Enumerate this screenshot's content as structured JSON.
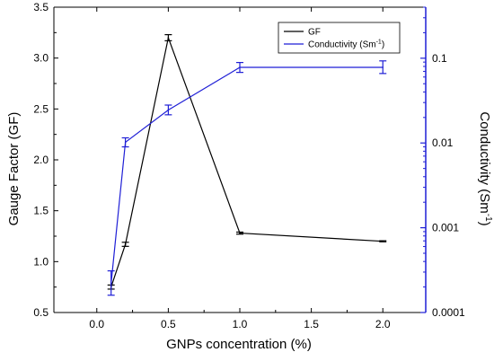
{
  "chart_data": {
    "type": "line",
    "title": "",
    "xlabel": "GNPs concentration (%)",
    "ylabel_left": "Gauge Factor (GF)",
    "ylabel_right_main": "Conductivity (Sm",
    "ylabel_right_sup": "-1",
    "ylabel_right_end": ")",
    "xlim": [
      -0.3,
      2.3
    ],
    "xticks": [
      0.0,
      0.5,
      1.0,
      1.5,
      2.0
    ],
    "xtick_labels": [
      "0.0",
      "0.5",
      "1.0",
      "1.5",
      "2.0"
    ],
    "ylim_left": [
      0.5,
      3.5
    ],
    "yticks_left": [
      0.5,
      1.0,
      1.5,
      2.0,
      2.5,
      3.0,
      3.5
    ],
    "ytick_labels_left": [
      "0.5",
      "1.0",
      "1.5",
      "2.0",
      "2.5",
      "3.0",
      "3.5"
    ],
    "yscale_right": "log",
    "ylim_right": [
      0.0001,
      0.4
    ],
    "yticks_right": [
      0.0001,
      0.001,
      0.01,
      0.1
    ],
    "ytick_labels_right": [
      "0.0001",
      "0.001",
      "0.01",
      "0.1"
    ],
    "legend_position": "top-right",
    "series": [
      {
        "name": "GF",
        "axis": "left",
        "color": "#000000",
        "x": [
          0.1,
          0.2,
          0.5,
          1.0,
          2.0
        ],
        "y": [
          0.75,
          1.17,
          3.2,
          1.28,
          1.2
        ],
        "err": [
          0.02,
          0.02,
          0.03,
          0.01,
          0.005
        ]
      },
      {
        "name": "Conductivity (Sm",
        "name_sup": "-1",
        "name_end": ")",
        "axis": "right",
        "color": "#1f1fd6",
        "x": [
          0.1,
          0.2,
          0.5,
          1.0,
          2.0
        ],
        "y": [
          0.00022,
          0.0102,
          0.0245,
          0.078,
          0.078
        ],
        "err_low": [
          0.00016,
          0.009,
          0.0215,
          0.068,
          0.066
        ],
        "err_high": [
          0.00031,
          0.0115,
          0.028,
          0.089,
          0.093
        ]
      }
    ]
  },
  "colors": {
    "left_axis": "#000000",
    "right_axis": "#1f1fd6"
  }
}
